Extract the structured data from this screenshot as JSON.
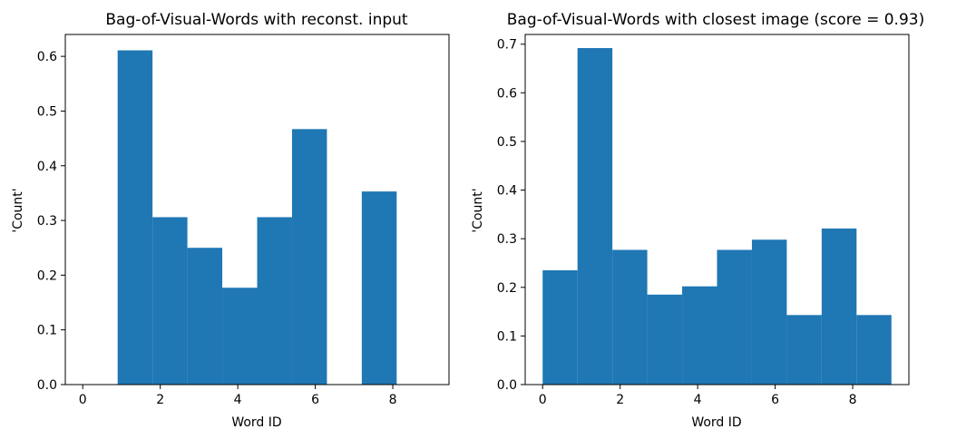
{
  "chart_data": [
    {
      "type": "bar",
      "title": "Bag-of-Visual-Words with reconst. input",
      "xlabel": "Word ID",
      "ylabel": "'Count'",
      "xlim": [
        -0.45,
        9.45
      ],
      "ylim": [
        0,
        0.64
      ],
      "xticks": [
        "0",
        "2",
        "4",
        "6",
        "8"
      ],
      "yticks": [
        "0.0",
        "0.1",
        "0.2",
        "0.3",
        "0.4",
        "0.5",
        "0.6"
      ],
      "bin_edges": [
        0,
        0.9,
        1.8,
        2.7,
        3.6,
        4.5,
        5.4,
        6.3,
        7.2,
        8.1,
        9.0
      ],
      "values": [
        0,
        0.611,
        0.306,
        0.25,
        0.177,
        0.306,
        0.467,
        0,
        0.353,
        0
      ],
      "color": "#1f77b4"
    },
    {
      "type": "bar",
      "title": "Bag-of-Visual-Words with closest image (score = 0.93)",
      "xlabel": "Word ID",
      "ylabel": "'Count'",
      "xlim": [
        -0.45,
        9.45
      ],
      "ylim": [
        0,
        0.72
      ],
      "xticks": [
        "0",
        "2",
        "4",
        "6",
        "8"
      ],
      "yticks": [
        "0.0",
        "0.1",
        "0.2",
        "0.3",
        "0.4",
        "0.5",
        "0.6",
        "0.7"
      ],
      "bin_edges": [
        0,
        0.9,
        1.8,
        2.7,
        3.6,
        4.5,
        5.4,
        6.3,
        7.2,
        8.1,
        9.0
      ],
      "values": [
        0.235,
        0.692,
        0.277,
        0.185,
        0.202,
        0.277,
        0.298,
        0.143,
        0.321,
        0.143
      ],
      "color": "#1f77b4"
    }
  ]
}
